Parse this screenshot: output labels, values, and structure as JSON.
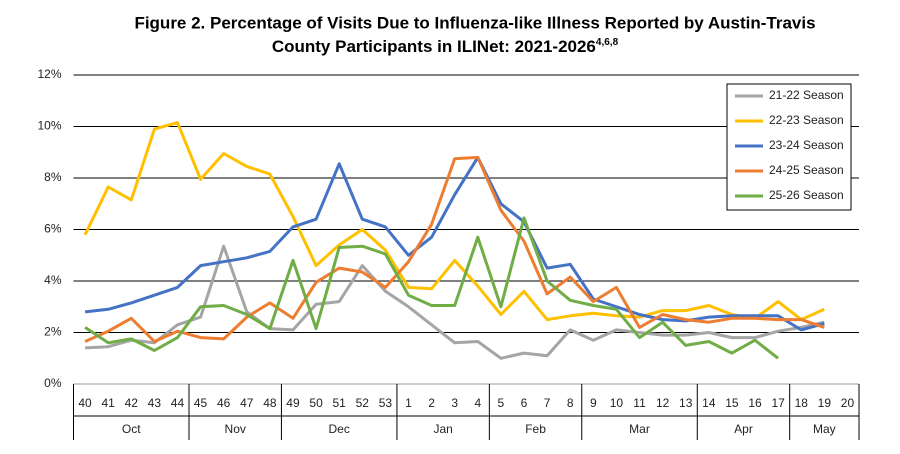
{
  "chart_data": {
    "type": "line",
    "title": [
      "Figure 2. Percentage of Visits Due to Influenza-like Illness Reported by Austin-Travis",
      "County Participants in ILINet: 2021-2026"
    ],
    "title_superscript": "4,6,8",
    "categories": [
      "40",
      "41",
      "42",
      "43",
      "44",
      "45",
      "46",
      "47",
      "48",
      "49",
      "50",
      "51",
      "52",
      "53",
      "1",
      "2",
      "3",
      "4",
      "5",
      "6",
      "7",
      "8",
      "9",
      "10",
      "11",
      "12",
      "13",
      "14",
      "15",
      "16",
      "17",
      "18",
      "19",
      "20"
    ],
    "month_groups": [
      {
        "label": "Oct",
        "span": 5
      },
      {
        "label": "Nov",
        "span": 4
      },
      {
        "label": "Dec",
        "span": 5
      },
      {
        "label": "Jan",
        "span": 4
      },
      {
        "label": "Feb",
        "span": 4
      },
      {
        "label": "Mar",
        "span": 5
      },
      {
        "label": "Apr",
        "span": 4
      },
      {
        "label": "May",
        "span": 3
      }
    ],
    "ylim": [
      0,
      12
    ],
    "yticks": [
      {
        "value": 0,
        "label": "0%"
      },
      {
        "value": 2,
        "label": "2%"
      },
      {
        "value": 4,
        "label": "4%"
      },
      {
        "value": 6,
        "label": "6%"
      },
      {
        "value": 8,
        "label": "8%"
      },
      {
        "value": 10,
        "label": "10%"
      },
      {
        "value": 12,
        "label": "12%"
      }
    ],
    "grid": true,
    "legend": "upper right",
    "series": [
      {
        "name": "21-22 Season",
        "color": "#a5a5a5",
        "values": [
          1.4,
          1.45,
          1.7,
          1.6,
          2.3,
          2.6,
          5.35,
          2.8,
          2.15,
          2.1,
          3.1,
          3.2,
          4.6,
          3.6,
          3.0,
          2.3,
          1.6,
          1.65,
          1.0,
          1.2,
          1.1,
          2.1,
          1.7,
          2.1,
          2.0,
          1.9,
          1.9,
          2.0,
          1.8,
          1.8,
          2.05,
          2.2,
          2.4,
          null
        ]
      },
      {
        "name": "22-23 Season",
        "color": "#ffc000",
        "values": [
          5.8,
          7.65,
          7.15,
          9.9,
          10.15,
          7.95,
          8.95,
          8.45,
          8.15,
          6.5,
          4.6,
          5.4,
          6.0,
          5.2,
          3.75,
          3.7,
          4.8,
          3.8,
          2.7,
          3.6,
          2.5,
          2.65,
          2.75,
          2.65,
          2.6,
          2.85,
          2.85,
          3.05,
          2.7,
          2.55,
          3.2,
          2.5,
          2.9,
          null
        ]
      },
      {
        "name": "23-24 Season",
        "color": "#4472c4",
        "values": [
          2.8,
          2.9,
          3.15,
          3.45,
          3.75,
          4.6,
          4.75,
          4.9,
          5.15,
          6.1,
          6.4,
          8.55,
          6.4,
          6.1,
          5.0,
          5.7,
          7.35,
          8.8,
          7.0,
          6.3,
          4.5,
          4.65,
          3.3,
          3.0,
          2.7,
          2.5,
          2.45,
          2.6,
          2.65,
          2.65,
          2.65,
          2.1,
          2.35,
          null
        ]
      },
      {
        "name": "24-25 Season",
        "color": "#ed7d31",
        "values": [
          1.65,
          2.05,
          2.55,
          1.65,
          2.05,
          1.8,
          1.75,
          2.6,
          3.15,
          2.55,
          3.95,
          4.5,
          4.35,
          3.75,
          4.75,
          6.2,
          8.75,
          8.8,
          6.75,
          5.55,
          3.5,
          4.15,
          3.2,
          3.75,
          2.2,
          2.7,
          2.5,
          2.4,
          2.55,
          2.55,
          2.5,
          2.5,
          2.2,
          null
        ]
      },
      {
        "name": "25-26 Season",
        "color": "#70ad47",
        "values": [
          2.2,
          1.6,
          1.75,
          1.3,
          1.8,
          3.0,
          3.05,
          2.7,
          2.15,
          4.8,
          2.15,
          5.3,
          5.35,
          5.05,
          3.45,
          3.05,
          3.05,
          5.7,
          3.0,
          6.45,
          4.0,
          3.25,
          3.05,
          2.9,
          1.8,
          2.4,
          1.5,
          1.65,
          1.2,
          1.7,
          1.0,
          null,
          null,
          null
        ]
      }
    ]
  }
}
